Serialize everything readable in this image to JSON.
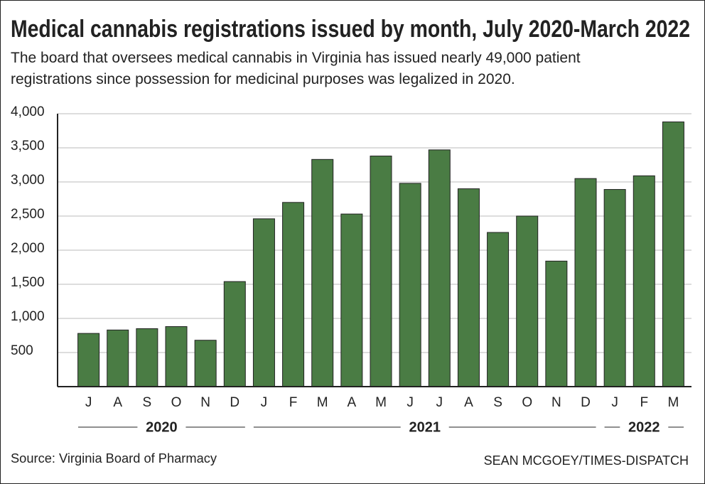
{
  "chart_data": {
    "type": "bar",
    "title": "Medical cannabis registrations issued by month, July 2020-March 2022",
    "subtitle": "The board that oversees medical cannabis in Virginia has issued nearly 49,000 patient registrations since possession for medicinal purposes was legalized in 2020.",
    "categories": [
      "J",
      "A",
      "S",
      "O",
      "N",
      "D",
      "J",
      "F",
      "M",
      "A",
      "M",
      "J",
      "J",
      "A",
      "S",
      "O",
      "N",
      "D",
      "J",
      "F",
      "M"
    ],
    "values": [
      780,
      830,
      850,
      880,
      680,
      1540,
      2460,
      2700,
      3330,
      2530,
      3380,
      2980,
      3470,
      2900,
      2260,
      2500,
      1840,
      3050,
      2890,
      3090,
      3880
    ],
    "year_labels": [
      "2020",
      "2021",
      "2022"
    ],
    "color": "#4a7c44",
    "ylim": [
      0,
      4000
    ],
    "yticks": [
      500,
      {
        "value": 1000,
        "label": "1,000"
      },
      {
        "value": 1500,
        "label": "1,500"
      },
      {
        "value": 2000,
        "label": "2,000"
      },
      {
        "value": 2500,
        "label": "2,500"
      },
      {
        "value": 3000,
        "label": "3,000"
      },
      {
        "value": 3500,
        "label": "3,500"
      },
      {
        "value": 4000,
        "label": "4,000"
      }
    ],
    "grid": true,
    "source": "Source: Virginia Board of Pharmacy",
    "credit": "SEAN MCGOEY/TIMES-DISPATCH"
  }
}
